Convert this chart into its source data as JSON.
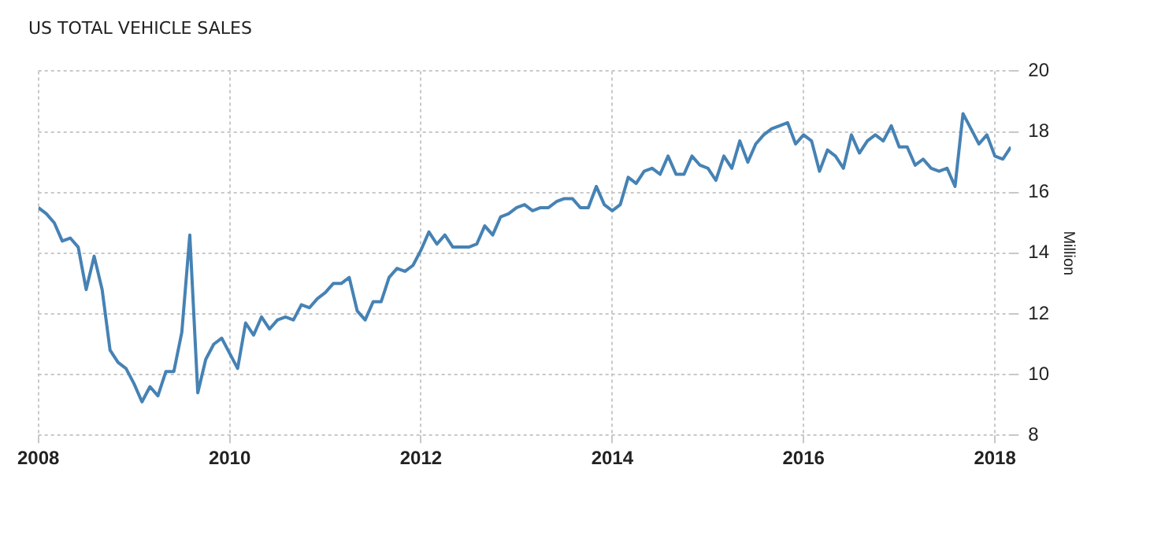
{
  "chart_data": {
    "type": "line",
    "title": "US TOTAL VEHICLE SALES",
    "ylabel": "Million",
    "x": [
      "2008-01",
      "2008-02",
      "2008-03",
      "2008-04",
      "2008-05",
      "2008-06",
      "2008-07",
      "2008-08",
      "2008-09",
      "2008-10",
      "2008-11",
      "2008-12",
      "2009-01",
      "2009-02",
      "2009-03",
      "2009-04",
      "2009-05",
      "2009-06",
      "2009-07",
      "2009-08",
      "2009-09",
      "2009-10",
      "2009-11",
      "2009-12",
      "2010-01",
      "2010-02",
      "2010-03",
      "2010-04",
      "2010-05",
      "2010-06",
      "2010-07",
      "2010-08",
      "2010-09",
      "2010-10",
      "2010-11",
      "2010-12",
      "2011-01",
      "2011-02",
      "2011-03",
      "2011-04",
      "2011-05",
      "2011-06",
      "2011-07",
      "2011-08",
      "2011-09",
      "2011-10",
      "2011-11",
      "2011-12",
      "2012-01",
      "2012-02",
      "2012-03",
      "2012-04",
      "2012-05",
      "2012-06",
      "2012-07",
      "2012-08",
      "2012-09",
      "2012-10",
      "2012-11",
      "2012-12",
      "2013-01",
      "2013-02",
      "2013-03",
      "2013-04",
      "2013-05",
      "2013-06",
      "2013-07",
      "2013-08",
      "2013-09",
      "2013-10",
      "2013-11",
      "2013-12",
      "2014-01",
      "2014-02",
      "2014-03",
      "2014-04",
      "2014-05",
      "2014-06",
      "2014-07",
      "2014-08",
      "2014-09",
      "2014-10",
      "2014-11",
      "2014-12",
      "2015-01",
      "2015-02",
      "2015-03",
      "2015-04",
      "2015-05",
      "2015-06",
      "2015-07",
      "2015-08",
      "2015-09",
      "2015-10",
      "2015-11",
      "2015-12",
      "2016-01",
      "2016-02",
      "2016-03",
      "2016-04",
      "2016-05",
      "2016-06",
      "2016-07",
      "2016-08",
      "2016-09",
      "2016-10",
      "2016-11",
      "2016-12",
      "2017-01",
      "2017-02",
      "2017-03",
      "2017-04",
      "2017-05",
      "2017-06",
      "2017-07",
      "2017-08",
      "2017-09",
      "2017-10",
      "2017-11",
      "2017-12",
      "2018-01",
      "2018-02",
      "2018-03"
    ],
    "series": [
      {
        "color": "#4682b4",
        "values": [
          15.5,
          15.3,
          15.0,
          14.4,
          14.5,
          14.2,
          12.8,
          13.9,
          12.8,
          10.8,
          10.4,
          10.2,
          9.7,
          9.1,
          9.6,
          9.3,
          10.1,
          10.1,
          11.4,
          14.6,
          9.4,
          10.5,
          11.0,
          11.2,
          10.7,
          10.2,
          11.7,
          11.3,
          11.9,
          11.5,
          11.8,
          11.9,
          11.8,
          12.3,
          12.2,
          12.5,
          12.7,
          13.0,
          13.0,
          13.2,
          12.1,
          11.8,
          12.4,
          12.4,
          13.2,
          13.5,
          13.4,
          13.6,
          14.1,
          14.7,
          14.3,
          14.6,
          14.2,
          14.2,
          14.2,
          14.3,
          14.9,
          14.6,
          15.2,
          15.3,
          15.5,
          15.6,
          15.4,
          15.5,
          15.5,
          15.7,
          15.8,
          15.8,
          15.5,
          15.5,
          16.2,
          15.6,
          15.4,
          15.6,
          16.5,
          16.3,
          16.7,
          16.8,
          16.6,
          17.2,
          16.6,
          16.6,
          17.2,
          16.9,
          16.8,
          16.4,
          17.2,
          16.8,
          17.7,
          17.0,
          17.6,
          17.9,
          18.1,
          18.2,
          18.3,
          17.6,
          17.9,
          17.7,
          16.7,
          17.4,
          17.2,
          16.8,
          17.9,
          17.3,
          17.7,
          17.9,
          17.7,
          18.2,
          17.5,
          17.5,
          16.9,
          17.1,
          16.8,
          16.7,
          16.8,
          16.2,
          18.6,
          18.1,
          17.6,
          17.9,
          17.2,
          17.1,
          17.5
        ]
      }
    ],
    "xlim": [
      "2008-01",
      "2018-03"
    ],
    "xticks": [
      "2008",
      "2010",
      "2012",
      "2014",
      "2016",
      "2018"
    ],
    "ylim": [
      8,
      20
    ],
    "yticks": [
      8,
      10,
      12,
      14,
      16,
      18,
      20
    ],
    "grid": true,
    "legend": false,
    "marker": "none",
    "line_style": "solid"
  }
}
